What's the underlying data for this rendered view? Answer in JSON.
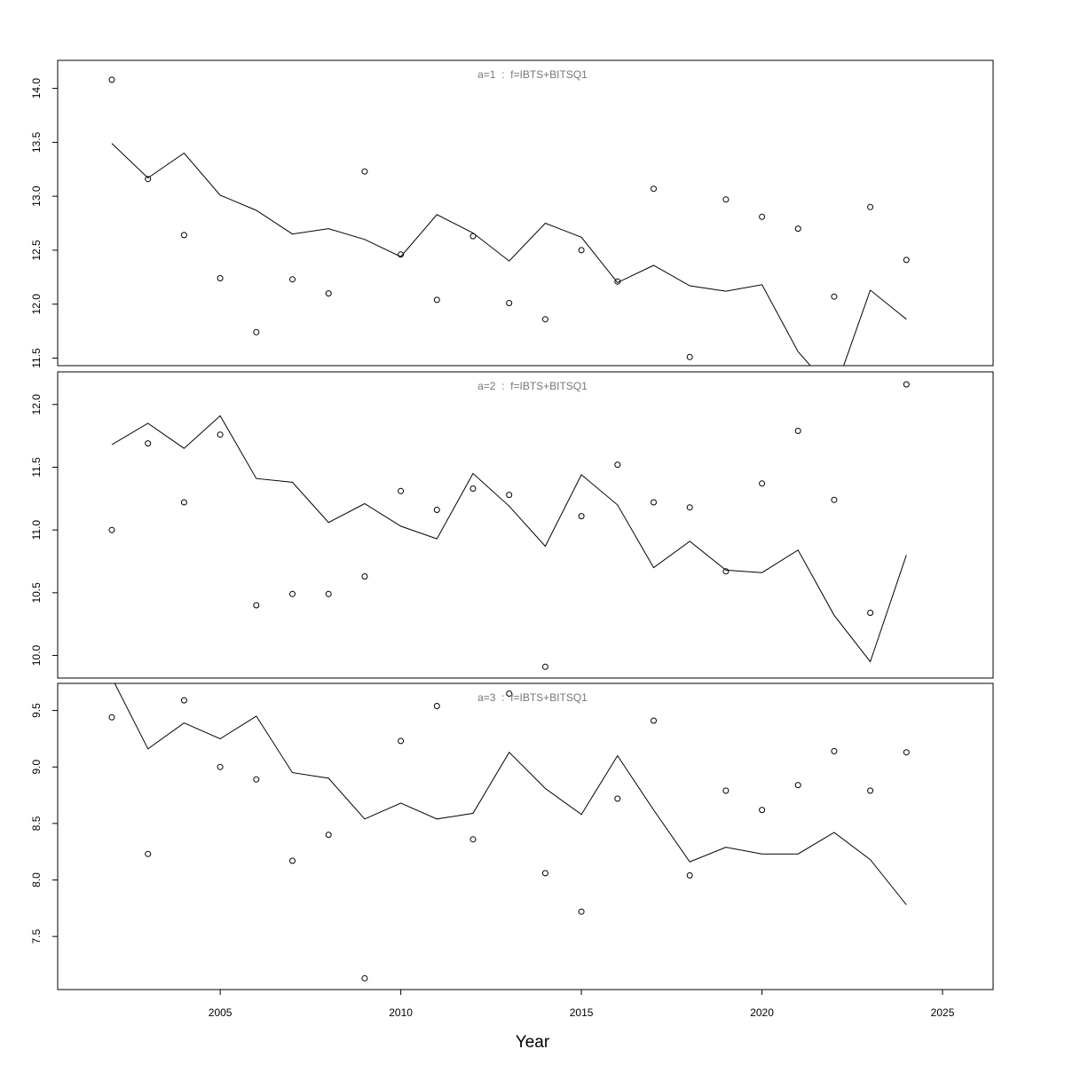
{
  "xlabel": "Year",
  "x_axis_ticks": [
    2005,
    2010,
    2015,
    2020,
    2025
  ],
  "chart_data": [
    {
      "type": "line",
      "title": "a=1  :  f=IBTS+BITSQ1",
      "xlim": [
        2000.5,
        2026.4
      ],
      "ylim": [
        11.43,
        14.26
      ],
      "y_ticks": [
        "11.5",
        "12.0",
        "12.5",
        "13.0",
        "13.5",
        "14.0"
      ],
      "x": [
        2002,
        2003,
        2004,
        2005,
        2006,
        2007,
        2008,
        2009,
        2010,
        2011,
        2012,
        2013,
        2014,
        2015,
        2016,
        2017,
        2018,
        2019,
        2020,
        2021,
        2022,
        2023,
        2024
      ],
      "series": [
        {
          "kind": "observed-points",
          "values": [
            14.08,
            13.16,
            12.64,
            12.24,
            11.74,
            12.23,
            12.1,
            13.23,
            12.46,
            12.04,
            12.63,
            12.01,
            11.86,
            12.5,
            12.21,
            13.07,
            11.51,
            12.97,
            12.81,
            12.7,
            12.07,
            12.9,
            12.41
          ]
        },
        {
          "kind": "fitted-line",
          "values": [
            13.49,
            13.17,
            13.4,
            13.01,
            12.87,
            12.65,
            12.7,
            12.6,
            12.44,
            12.83,
            12.66,
            12.4,
            12.75,
            12.62,
            12.2,
            12.36,
            12.17,
            12.12,
            12.18,
            11.56,
            11.18,
            12.13,
            11.86
          ]
        }
      ]
    },
    {
      "type": "line",
      "title": "a=2  :  f=IBTS+BITSQ1",
      "xlim": [
        2000.5,
        2026.4
      ],
      "ylim": [
        9.82,
        12.26
      ],
      "y_ticks": [
        "10.0",
        "10.5",
        "11.0",
        "11.5",
        "12.0"
      ],
      "x": [
        2002,
        2003,
        2004,
        2005,
        2006,
        2007,
        2008,
        2009,
        2010,
        2011,
        2012,
        2013,
        2014,
        2015,
        2016,
        2017,
        2018,
        2019,
        2020,
        2021,
        2022,
        2023,
        2024
      ],
      "series": [
        {
          "kind": "observed-points",
          "values": [
            11.0,
            11.69,
            11.22,
            11.76,
            10.4,
            10.49,
            10.49,
            10.63,
            11.31,
            11.16,
            11.33,
            11.28,
            9.91,
            11.11,
            11.52,
            11.22,
            11.18,
            10.67,
            11.37,
            11.79,
            11.24,
            10.34,
            12.16
          ]
        },
        {
          "kind": "fitted-line",
          "values": [
            11.68,
            11.85,
            11.65,
            11.91,
            11.41,
            11.38,
            11.06,
            11.21,
            11.03,
            10.93,
            11.45,
            11.19,
            10.87,
            11.44,
            11.2,
            10.7,
            10.91,
            10.68,
            10.66,
            10.84,
            10.32,
            9.95,
            10.8
          ]
        }
      ]
    },
    {
      "type": "line",
      "title": "a=3  :  f=IBTS+BITSQ1",
      "xlim": [
        2000.5,
        2026.4
      ],
      "ylim": [
        7.03,
        9.74
      ],
      "y_ticks": [
        "7.5",
        "8.0",
        "8.5",
        "9.0",
        "9.5"
      ],
      "x": [
        2002,
        2003,
        2004,
        2005,
        2006,
        2007,
        2008,
        2009,
        2010,
        2011,
        2012,
        2013,
        2014,
        2015,
        2016,
        2017,
        2018,
        2019,
        2020,
        2021,
        2022,
        2023,
        2024
      ],
      "series": [
        {
          "kind": "observed-points",
          "values": [
            9.44,
            8.23,
            9.59,
            9.0,
            8.89,
            8.17,
            8.4,
            7.13,
            9.23,
            9.54,
            8.36,
            9.65,
            8.06,
            7.72,
            8.72,
            9.41,
            8.04,
            8.79,
            8.62,
            8.84,
            9.14,
            8.79,
            9.13
          ]
        },
        {
          "kind": "fitted-line",
          "values": [
            9.79,
            9.16,
            9.39,
            9.25,
            9.45,
            8.95,
            8.9,
            8.54,
            8.68,
            8.54,
            8.59,
            9.13,
            8.81,
            8.58,
            9.1,
            8.62,
            8.16,
            8.29,
            8.23,
            8.23,
            8.42,
            8.18,
            7.78
          ]
        }
      ]
    }
  ]
}
